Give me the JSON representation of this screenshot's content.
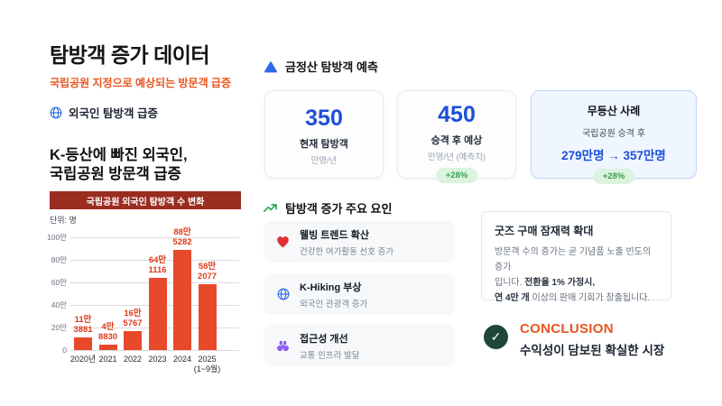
{
  "header": {
    "title": "탐방객 증가 데이터",
    "subtitle": "국립공원 지정으로 예상되는 방문객 급증",
    "highlight": "외국인 탐방객 급증"
  },
  "left": {
    "heading_line1": "K-등산에 빠진 외국인,",
    "heading_line2": "국립공원 방문객 급증",
    "chart_title": "국립공원 외국인 탐방객 수 변화",
    "unit_label": "단위: 명"
  },
  "chart_data": {
    "type": "bar",
    "title": "국립공원 외국인 탐방객 수 변화",
    "unit": "명",
    "categories": [
      "2020년",
      "2021",
      "2022",
      "2023",
      "2024",
      "2025 (1~9월)"
    ],
    "values": [
      113881,
      48830,
      165767,
      641116,
      885282,
      582077
    ],
    "bar_labels": [
      [
        "11만",
        "3881"
      ],
      [
        "4만",
        "8830"
      ],
      [
        "16만",
        "5767"
      ],
      [
        "64만",
        "1116"
      ],
      [
        "88만",
        "5282"
      ],
      [
        "58만",
        "2077"
      ]
    ],
    "x_labels": [
      [
        "2020년"
      ],
      [
        "2021"
      ],
      [
        "2022"
      ],
      [
        "2023"
      ],
      [
        "2024"
      ],
      [
        "2025",
        "(1~9월)"
      ]
    ],
    "y_ticks": [
      "100만",
      "80만",
      "60만",
      "40만",
      "20만",
      "0"
    ],
    "ylim": [
      0,
      1000000
    ],
    "grid": true,
    "legend": false,
    "bar_color": "#E8492B"
  },
  "forecast": {
    "header": "금정산 탐방객 예측",
    "card_current": {
      "value": "350",
      "label": "현재 탐방객",
      "unit": "만명/년"
    },
    "card_after": {
      "value": "450",
      "label": "승격 후 예상",
      "unit": "만명/년 (예측치)",
      "badge": "+28%"
    },
    "card_case": {
      "title": "무등산 사례",
      "label": "국립공원 승격 후",
      "value": "279만명 → 357만명",
      "badge": "+28%"
    }
  },
  "factors": {
    "header": "탐방객 증가 주요 요인",
    "items": [
      {
        "icon": "heart-icon",
        "title": "웰빙 트렌드 확산",
        "desc": "건강한 여가활동 선호 증가"
      },
      {
        "icon": "globe-icon",
        "title": "K-Hiking 부상",
        "desc": "외국인 관광객 증가"
      },
      {
        "icon": "binoculars-icon",
        "title": "접근성 개선",
        "desc": "교통 인프라 발달"
      }
    ]
  },
  "goods": {
    "title": "굿즈 구매 잠재력 확대",
    "line1": "방문객 수의 증가는 곧 기념품 노출 빈도의 증가",
    "line2_regular": "입니다. ",
    "line2_bold": "전환율 1% 가정시,",
    "line3_bold": "연 4만 개",
    "line3_regular": " 이상의 판매 기회가 창출됩니다."
  },
  "conclusion": {
    "label": "CONCLUSION",
    "text": "수익성이 담보된 확실한 시장",
    "check_glyph": "✓"
  },
  "colors": {
    "accent_orange": "#E8551F",
    "banner_red": "#9B2C20",
    "bar_red": "#E8492B",
    "primary_blue": "#1D4FD7",
    "badge_green_bg": "#DCF3DE",
    "badge_green_text": "#34A14C",
    "check_circle_green": "#20463C"
  }
}
